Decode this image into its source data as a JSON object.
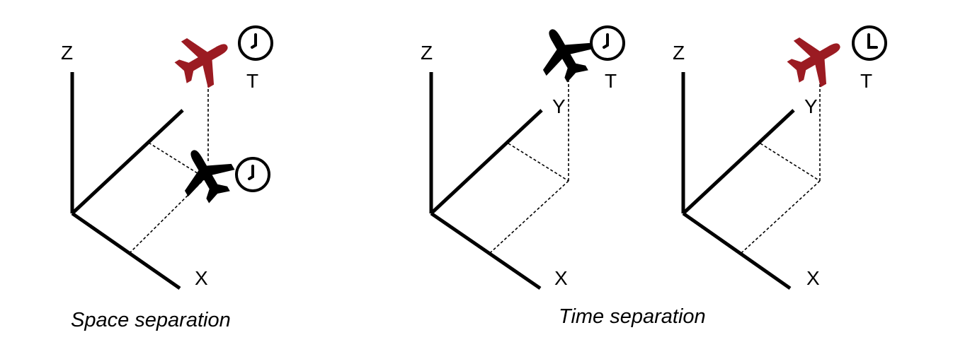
{
  "colors": {
    "ink": "#000000",
    "highlight": "#9b1b22",
    "background": "#ffffff"
  },
  "panels": [
    {
      "id": "space",
      "axis_labels": {
        "z": "Z",
        "x": "X"
      },
      "time_label": "T",
      "planes": [
        {
          "color": "highlight",
          "icon": "airplane-icon"
        },
        {
          "color": "ink",
          "icon": "airplane-icon"
        }
      ],
      "clocks": [
        {
          "icon": "clock-icon"
        },
        {
          "icon": "clock-icon"
        }
      ]
    },
    {
      "id": "time-a",
      "axis_labels": {
        "z": "Z",
        "x": "X",
        "y": "Y"
      },
      "time_label": "T",
      "planes": [
        {
          "color": "ink",
          "icon": "airplane-icon"
        }
      ],
      "clocks": [
        {
          "icon": "clock-icon"
        }
      ]
    },
    {
      "id": "time-b",
      "axis_labels": {
        "z": "Z",
        "x": "X",
        "y": "Y"
      },
      "time_label": "T",
      "planes": [
        {
          "color": "highlight",
          "icon": "airplane-icon"
        }
      ],
      "clocks": [
        {
          "icon": "clock-icon"
        }
      ]
    }
  ],
  "captions": {
    "space": "Space separation",
    "time": "Time separation"
  }
}
